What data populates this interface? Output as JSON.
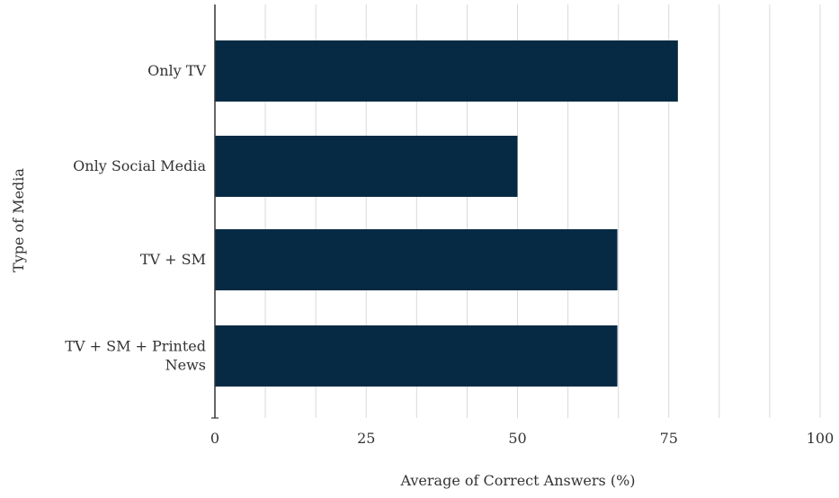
{
  "chart_data": {
    "type": "bar",
    "orientation": "horizontal",
    "categories": [
      "Only TV",
      "Only Social Media",
      "TV + SM",
      "TV + SM + Printed News"
    ],
    "category_label_lines": [
      [
        "Only TV"
      ],
      [
        "Only Social Media"
      ],
      [
        "TV + SM"
      ],
      [
        "TV + SM + Printed",
        "News"
      ]
    ],
    "values": [
      76.5,
      50,
      66.5,
      66.5
    ],
    "xlabel": "Average of Correct Answers (%)",
    "ylabel": "Type of Media",
    "xlim": [
      0,
      100
    ],
    "xticks": [
      0,
      25,
      50,
      75,
      100
    ],
    "minor_gridlines": [
      8.33,
      16.67,
      33.33,
      41.67,
      58.33,
      66.67,
      83.33,
      91.67
    ],
    "grid": true,
    "legend": "none",
    "bar_color": "#062a43",
    "grid_color": "#d9d9d9",
    "axis_color": "#333333"
  }
}
